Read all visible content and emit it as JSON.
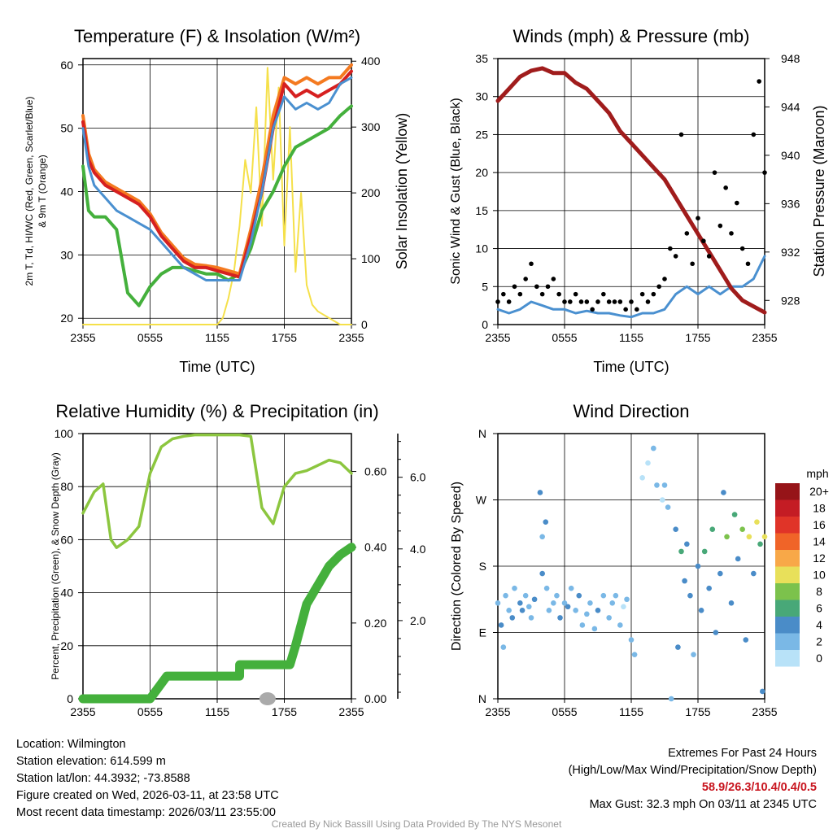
{
  "footer": {
    "location": "Location: Wilmington",
    "elevation": "Station elevation: 614.599 m",
    "latlon": "Station lat/lon: 44.3932; -73.8588",
    "created": "Figure created on Wed, 2026-03-11, at 23:58 UTC",
    "recent": "Most recent data timestamp: 2026/03/11 23:55:00",
    "extremes_title": "Extremes For Past 24 Hours",
    "extremes_sub": "(High/Low/Max Wind/Precipitation/Snow Depth)",
    "extremes_values": "58.9/26.3/10.4/0.4/0.5",
    "max_gust": "Max Gust: 32.3 mph On 03/11 at 2345 UTC",
    "credit": "Created By Nick Bassill Using Data Provided By The NYS Mesonet"
  },
  "chart_data": [
    {
      "type": "line",
      "title": "Temperature (F) & Insolation (W/m²)",
      "xlabel": "Time (UTC)",
      "ylabel": "2m T, Td, HI/WC (Red, Green, Scarlet/Blue) & 9m T (Orange)",
      "ylabel_line1": "2m T, T",
      "ylabel_sub": "d",
      "ylabel_line1b": ", HI/WC (Red, Green, Scarlet/Blue)",
      "ylabel_line2": "& 9m T (Orange)",
      "y2label": "Solar Insolation (Yellow)",
      "xticks": [
        "2355",
        "0555",
        "1155",
        "1755",
        "2355"
      ],
      "yticks": [
        "20",
        "30",
        "40",
        "50",
        "60"
      ],
      "y2ticks": [
        "0",
        "100",
        "200",
        "300",
        "400"
      ],
      "ylim": [
        19,
        61
      ],
      "y2lim": [
        0,
        400
      ],
      "x_hours": [
        0,
        0.5,
        1,
        2,
        3,
        4,
        5,
        6,
        7,
        8,
        9,
        10,
        11,
        12,
        13,
        14,
        15,
        16,
        17,
        18,
        19,
        20,
        21,
        22,
        23,
        24
      ],
      "series": [
        {
          "name": "2m T",
          "color": "#d62020",
          "values": [
            51,
            45,
            43,
            41,
            40,
            39,
            38,
            36,
            33,
            31,
            29,
            28,
            28,
            27.5,
            27,
            26.5,
            33,
            40,
            50,
            57,
            55,
            56,
            55,
            56,
            57,
            59
          ]
        },
        {
          "name": "9m T",
          "color": "#f47a20",
          "values": [
            52,
            46,
            43.5,
            41.5,
            40.5,
            39.5,
            38.5,
            36.5,
            33.5,
            31.5,
            29.5,
            28.5,
            28.3,
            28,
            27.5,
            27,
            34,
            42,
            52,
            58,
            57,
            58,
            57,
            58,
            58,
            60
          ]
        },
        {
          "name": "Td",
          "color": "#44b03c",
          "values": [
            44,
            37,
            36,
            36,
            34,
            24,
            22,
            25,
            27,
            28,
            28,
            27.5,
            27,
            27,
            26,
            27,
            31,
            37,
            40,
            44,
            47,
            48,
            49,
            50,
            52,
            53.5
          ]
        },
        {
          "name": "WC",
          "color": "#4a90d0",
          "values": [
            50,
            44,
            41,
            39,
            37,
            36,
            35,
            34,
            32,
            30,
            28,
            27,
            26,
            26,
            26,
            26,
            32,
            40,
            50,
            55,
            53,
            54,
            53,
            54,
            57,
            58
          ]
        },
        {
          "name": "Insolation",
          "color": "#f5e04a",
          "axis": "y2",
          "x_hours": [
            0,
            12,
            12.5,
            13,
            13.5,
            14,
            14.5,
            15,
            15.5,
            16,
            16.5,
            17,
            17.5,
            18,
            18.5,
            19,
            19.5,
            20,
            20.5,
            21,
            22,
            23,
            24
          ],
          "values": [
            0,
            0,
            10,
            40,
            80,
            150,
            250,
            200,
            330,
            150,
            390,
            220,
            360,
            120,
            300,
            80,
            200,
            60,
            30,
            20,
            10,
            0,
            0
          ]
        }
      ]
    },
    {
      "type": "line",
      "title": "Winds (mph) & Pressure (mb)",
      "xlabel": "Time (UTC)",
      "ylabel": "Sonic Wind & Gust (Blue, Black)",
      "y2label": "Station Pressure (Maroon)",
      "xticks": [
        "2355",
        "0555",
        "1155",
        "1755",
        "2355"
      ],
      "yticks": [
        "0",
        "5",
        "10",
        "15",
        "20",
        "25",
        "30",
        "35"
      ],
      "y2ticks": [
        "928",
        "932",
        "936",
        "940",
        "944",
        "948"
      ],
      "ylim": [
        0,
        35
      ],
      "y2lim": [
        926,
        948
      ],
      "pressure": {
        "color": "#a01c1c",
        "x_hours": [
          0,
          1,
          2,
          3,
          4,
          5,
          6,
          7,
          8,
          9,
          10,
          11,
          12,
          13,
          14,
          15,
          16,
          17,
          18,
          19,
          20,
          21,
          22,
          23,
          24
        ],
        "values": [
          944.5,
          945.5,
          946.5,
          947,
          947.2,
          946.8,
          946.8,
          946,
          945.5,
          944.5,
          943.5,
          942,
          941,
          940,
          939,
          938,
          936.5,
          935,
          933.5,
          932,
          930.5,
          929,
          928,
          927.5,
          927
        ]
      },
      "wind": {
        "color": "#4a90d0",
        "x_hours": [
          0,
          1,
          2,
          3,
          4,
          5,
          6,
          7,
          8,
          9,
          10,
          11,
          12,
          13,
          14,
          15,
          16,
          17,
          18,
          19,
          20,
          21,
          22,
          23,
          24
        ],
        "values": [
          2,
          1.5,
          2,
          3,
          2.5,
          2,
          2,
          1.5,
          1.8,
          1.5,
          1.5,
          1.2,
          1,
          1.5,
          1.5,
          2,
          4,
          5,
          4,
          5,
          4,
          5,
          5,
          6,
          9
        ]
      },
      "gust": {
        "color": "#000000",
        "x_hours": [
          0,
          0.5,
          1,
          1.5,
          2,
          2.5,
          3,
          3.5,
          4,
          4.5,
          5,
          5.5,
          6,
          6.5,
          7,
          7.5,
          8,
          8.5,
          9,
          9.5,
          10,
          10.5,
          11,
          11.5,
          12,
          12.5,
          13,
          13.5,
          14,
          14.5,
          15,
          15.5,
          16,
          16.5,
          17,
          17.5,
          18,
          18.5,
          19,
          19.5,
          20,
          20.5,
          21,
          21.5,
          22,
          22.5,
          23,
          23.5,
          24
        ],
        "values": [
          3,
          4,
          3,
          5,
          4,
          6,
          8,
          5,
          4,
          5,
          6,
          4,
          3,
          3,
          4,
          3,
          3,
          2,
          3,
          4,
          3,
          3,
          3,
          2,
          3,
          2,
          4,
          3,
          4,
          5,
          6,
          10,
          9,
          25,
          12,
          8,
          14,
          11,
          9,
          20,
          13,
          18,
          12,
          16,
          10,
          8,
          25,
          32,
          20
        ]
      }
    },
    {
      "type": "line",
      "title": "Relative Humidity (%) & Precipitation (in)",
      "ylabel": "Percent, Precipitation (Green), & Snow Depth (Gray)",
      "xticks": [
        "2355",
        "0555",
        "1155",
        "1755",
        "2355"
      ],
      "yticks": [
        "0",
        "20",
        "40",
        "60",
        "80",
        "100"
      ],
      "y2ticks": [
        "0.00",
        "0.20",
        "0.40",
        "0.60"
      ],
      "y3ticks": [
        "2.0",
        "4.0",
        "6.0"
      ],
      "ylim": [
        0,
        100
      ],
      "y2lim": [
        0,
        0.7
      ],
      "rh": {
        "color": "#8cc63f",
        "x_hours": [
          0,
          1,
          1.8,
          2.5,
          3,
          4,
          5,
          6,
          7,
          8,
          9,
          10,
          11,
          12,
          13,
          14,
          15,
          16,
          17,
          18,
          19,
          20,
          21,
          22,
          23,
          24
        ],
        "values": [
          70,
          78,
          81,
          60,
          57,
          60,
          65,
          85,
          95,
          98,
          99,
          99.5,
          99.5,
          99.5,
          99.5,
          99.5,
          99,
          72,
          66,
          80,
          85,
          86,
          88,
          90,
          89,
          85
        ]
      },
      "precip": {
        "color": "#44b03c",
        "x_hours": [
          0,
          6,
          6.5,
          7.5,
          14,
          14.01,
          18.5,
          19,
          20,
          21,
          22,
          23,
          24
        ],
        "values": [
          0,
          0,
          0.02,
          0.06,
          0.06,
          0.09,
          0.09,
          0.14,
          0.25,
          0.3,
          0.35,
          0.38,
          0.4
        ]
      },
      "snow_depth": {
        "color": "#aaaaaa",
        "x_hours": [
          16.5
        ],
        "values": [
          0
        ]
      }
    },
    {
      "type": "scatter",
      "title": "Wind Direction",
      "ylabel": "Direction (Colored By Speed)",
      "xticks": [
        "2355",
        "0555",
        "1155",
        "1755",
        "2355"
      ],
      "yticks": [
        "N",
        "E",
        "S",
        "W",
        "N"
      ],
      "ylim": [
        0,
        360
      ],
      "colorbar": {
        "title": "mph",
        "labels": [
          "0",
          "2",
          "4",
          "6",
          "8",
          "10",
          "12",
          "14",
          "16",
          "18",
          "20+"
        ],
        "colors": [
          "#b8e2f8",
          "#7ab8e6",
          "#4a8cc8",
          "#48a878",
          "#7cc24c",
          "#e8e05a",
          "#f8a848",
          "#f06428",
          "#e03428",
          "#c41c24",
          "#961418"
        ]
      },
      "points": [
        [
          0,
          130,
          2
        ],
        [
          0.3,
          100,
          3
        ],
        [
          0.5,
          70,
          2
        ],
        [
          0.7,
          140,
          1
        ],
        [
          1,
          120,
          2
        ],
        [
          1.3,
          110,
          3
        ],
        [
          1.5,
          150,
          2
        ],
        [
          2,
          130,
          3
        ],
        [
          2.2,
          120,
          4
        ],
        [
          2.5,
          140,
          2
        ],
        [
          2.8,
          125,
          1
        ],
        [
          3,
          110,
          2
        ],
        [
          3.3,
          135,
          3
        ],
        [
          3.8,
          280,
          3
        ],
        [
          4,
          220,
          2
        ],
        [
          4,
          170,
          3
        ],
        [
          4.3,
          240,
          3
        ],
        [
          4.4,
          150,
          2
        ],
        [
          4.6,
          120,
          2
        ],
        [
          5,
          130,
          1
        ],
        [
          5.3,
          140,
          2
        ],
        [
          5.6,
          110,
          3
        ],
        [
          6,
          130,
          2
        ],
        [
          6.3,
          125,
          3
        ],
        [
          6.6,
          150,
          1
        ],
        [
          7,
          120,
          2
        ],
        [
          7.3,
          140,
          3
        ],
        [
          7.6,
          100,
          2
        ],
        [
          8,
          115,
          1
        ],
        [
          8.3,
          130,
          2
        ],
        [
          8.7,
          95,
          2
        ],
        [
          9,
          120,
          3
        ],
        [
          9.5,
          140,
          1
        ],
        [
          10,
          110,
          2
        ],
        [
          10.3,
          130,
          1
        ],
        [
          10.6,
          140,
          2
        ],
        [
          11,
          100,
          1
        ],
        [
          11.3,
          125,
          0
        ],
        [
          11.6,
          135,
          1
        ],
        [
          12,
          80,
          2
        ],
        [
          12.3,
          60,
          1
        ],
        [
          13,
          300,
          0
        ],
        [
          13.5,
          320,
          0
        ],
        [
          14,
          340,
          1
        ],
        [
          14.3,
          290,
          2
        ],
        [
          14.8,
          270,
          0
        ],
        [
          15,
          290,
          1
        ],
        [
          15.3,
          260,
          1
        ],
        [
          15.6,
          0,
          1
        ],
        [
          16,
          230,
          3
        ],
        [
          16.2,
          70,
          3
        ],
        [
          16.5,
          200,
          6
        ],
        [
          16.8,
          160,
          3
        ],
        [
          17,
          210,
          4
        ],
        [
          17.3,
          140,
          3
        ],
        [
          17.6,
          60,
          2
        ],
        [
          18,
          180,
          4
        ],
        [
          18.3,
          120,
          3
        ],
        [
          18.6,
          200,
          6
        ],
        [
          19,
          150,
          4
        ],
        [
          19.3,
          230,
          5
        ],
        [
          19.6,
          90,
          3
        ],
        [
          20,
          170,
          4
        ],
        [
          20.3,
          280,
          4
        ],
        [
          20.6,
          220,
          8
        ],
        [
          21,
          130,
          3
        ],
        [
          21.3,
          250,
          6
        ],
        [
          21.6,
          190,
          4
        ],
        [
          22,
          230,
          7
        ],
        [
          22.3,
          80,
          3
        ],
        [
          22.6,
          220,
          9
        ],
        [
          23,
          170,
          4
        ],
        [
          23.3,
          240,
          10
        ],
        [
          23.6,
          210,
          6
        ],
        [
          24,
          220,
          9
        ],
        [
          23.8,
          10,
          3
        ]
      ]
    }
  ]
}
